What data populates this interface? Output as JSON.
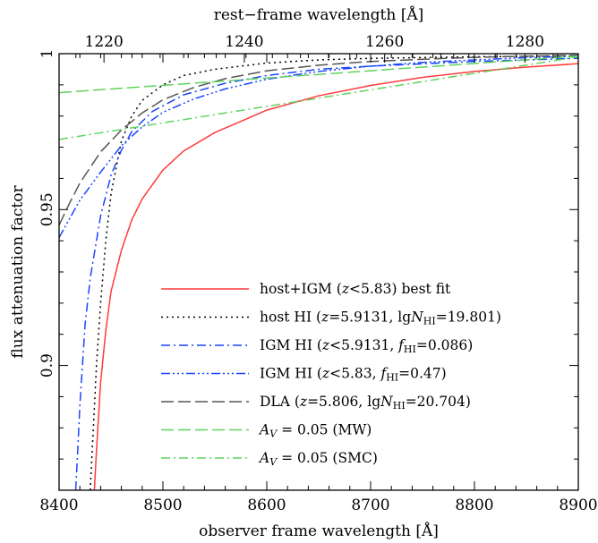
{
  "chart_data": {
    "type": "line",
    "xlabel": "observer frame wavelength [Å]",
    "x2label": "rest−frame wavelength [Å]",
    "ylabel": "flux attenuation factor",
    "xlim": [
      8400,
      8900
    ],
    "ylim": [
      0.86,
      1.0
    ],
    "x2lim": [
      1213.6,
      1287.6
    ],
    "xticks": [
      8400,
      8500,
      8600,
      8700,
      8800,
      8900
    ],
    "x2ticks": [
      1220,
      1240,
      1260,
      1280
    ],
    "yticks": [
      0.9,
      0.95,
      1
    ],
    "ytick_labels": [
      "0.9",
      "0.95",
      "1"
    ],
    "grid": false,
    "legend_position": "lower-right",
    "series": [
      {
        "name": "host+IGM (z<5.83) best fit",
        "legend_parts": [
          {
            "t": "host+IGM (",
            "i": false
          },
          {
            "t": "z",
            "i": true
          },
          {
            "t": "<5.83) best fit",
            "i": false
          }
        ],
        "color": "#ff3b3b",
        "dash": "",
        "x": [
          8434,
          8436,
          8440,
          8445,
          8450,
          8460,
          8470,
          8480,
          8500,
          8520,
          8550,
          8600,
          8650,
          8700,
          8750,
          8800,
          8850,
          8900
        ],
        "y": [
          0.86,
          0.8727,
          0.8946,
          0.9112,
          0.9237,
          0.9369,
          0.9467,
          0.9534,
          0.9627,
          0.9688,
          0.9747,
          0.9819,
          0.9865,
          0.9898,
          0.9924,
          0.9943,
          0.9957,
          0.9968
        ]
      },
      {
        "name": "host HI (z=5.9131, lgNHI=19.801)",
        "legend_parts": [
          {
            "t": "host HI (",
            "i": false
          },
          {
            "t": "z",
            "i": true
          },
          {
            "t": "=5.9131, lg",
            "i": false
          },
          {
            "t": "N",
            "i": true
          },
          {
            "t": "HI",
            "i": false,
            "sub": true
          },
          {
            "t": "=19.801)",
            "i": false
          }
        ],
        "color": "#000000",
        "dash": "2,4",
        "x": [
          8430,
          8433,
          8436,
          8440,
          8445,
          8450,
          8460,
          8470,
          8480,
          8500,
          8520,
          8550,
          8600,
          8650,
          8700,
          8800,
          8900
        ],
        "y": [
          0.86,
          0.88,
          0.9,
          0.92,
          0.94,
          0.955,
          0.972,
          0.98,
          0.985,
          0.99,
          0.993,
          0.995,
          0.997,
          0.998,
          0.9985,
          0.999,
          0.9993
        ]
      },
      {
        "name": "IGM HI (z<5.9131, fHI=0.086)",
        "legend_parts": [
          {
            "t": "IGM HI (",
            "i": false
          },
          {
            "t": "z",
            "i": true
          },
          {
            "t": "<5.9131, ",
            "i": false
          },
          {
            "t": "f",
            "i": true
          },
          {
            "t": "HI",
            "i": false,
            "sub": true
          },
          {
            "t": "=0.086)",
            "i": false
          }
        ],
        "color": "#1a45ff",
        "dash": "10,4,2,4",
        "x": [
          8416,
          8418,
          8420,
          8425,
          8430,
          8440,
          8450,
          8460,
          8470,
          8490,
          8520,
          8560,
          8600,
          8650,
          8700,
          8800,
          8900
        ],
        "y": [
          0.86,
          0.873,
          0.887,
          0.913,
          0.928,
          0.948,
          0.961,
          0.969,
          0.975,
          0.9815,
          0.9868,
          0.9905,
          0.993,
          0.995,
          0.996,
          0.9975,
          0.9985
        ]
      },
      {
        "name": "IGM HI (z<5.83, fHI=0.47)",
        "legend_parts": [
          {
            "t": "IGM HI (",
            "i": false
          },
          {
            "t": "z",
            "i": true
          },
          {
            "t": "<5.83, ",
            "i": false
          },
          {
            "t": "f",
            "i": true
          },
          {
            "t": "HI",
            "i": false,
            "sub": true
          },
          {
            "t": "=0.47)",
            "i": false
          }
        ],
        "color": "#1a45ff",
        "dash": "10,3,2,3,2,3,2,3",
        "x": [
          8400,
          8420,
          8440,
          8460,
          8480,
          8500,
          8530,
          8560,
          8600,
          8650,
          8700,
          8750,
          8800,
          8850,
          8900
        ],
        "y": [
          0.941,
          0.953,
          0.962,
          0.9705,
          0.9765,
          0.9812,
          0.9855,
          0.9887,
          0.9918,
          0.9943,
          0.996,
          0.9972,
          0.998,
          0.9987,
          0.9992
        ]
      },
      {
        "name": "DLA (z=5.806, lgNHI=20.704)",
        "legend_parts": [
          {
            "t": "DLA (",
            "i": false
          },
          {
            "t": "z",
            "i": true
          },
          {
            "t": "=5.806, lg",
            "i": false
          },
          {
            "t": "N",
            "i": true
          },
          {
            "t": "HI",
            "i": false,
            "sub": true
          },
          {
            "t": "=20.704)",
            "i": false
          }
        ],
        "color": "#555555",
        "dash": "14,5",
        "x": [
          8400,
          8410,
          8420,
          8440,
          8460,
          8480,
          8500,
          8530,
          8560,
          8600,
          8650,
          8700,
          8750,
          8800,
          8850,
          8900
        ],
        "y": [
          0.945,
          0.952,
          0.9585,
          0.9685,
          0.9755,
          0.981,
          0.9852,
          0.9892,
          0.992,
          0.9945,
          0.9963,
          0.9975,
          0.9982,
          0.9988,
          0.9992,
          0.9995
        ]
      },
      {
        "name": "AV = 0.05 (MW)",
        "legend_parts": [
          {
            "t": "A",
            "i": true
          },
          {
            "t": "V",
            "i": true,
            "sub": true
          },
          {
            "t": " = 0.05 (MW)",
            "i": false
          }
        ],
        "color": "#5fd35f",
        "dash": "14,5",
        "x": [
          8400,
          8900
        ],
        "y": [
          0.9875,
          0.9992
        ]
      },
      {
        "name": "AV = 0.05 (SMC)",
        "legend_parts": [
          {
            "t": "A",
            "i": true
          },
          {
            "t": "V",
            "i": true,
            "sub": true
          },
          {
            "t": " = 0.05 (SMC)",
            "i": false
          }
        ],
        "color": "#5fd35f",
        "dash": "10,4,2,4",
        "x": [
          8400,
          8900
        ],
        "y": [
          0.9725,
          0.999
        ]
      }
    ]
  }
}
